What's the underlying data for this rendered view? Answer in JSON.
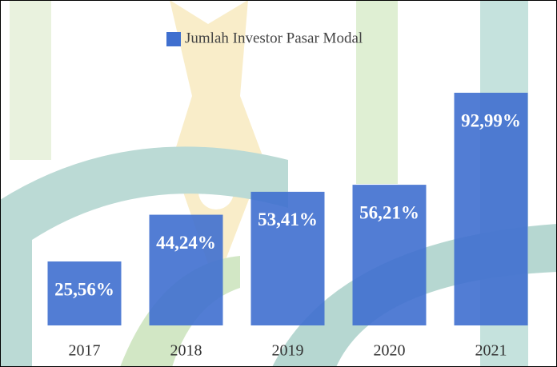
{
  "chart_data": {
    "type": "bar",
    "legend_label": "Jumlah Investor Pasar Modal",
    "categories": [
      "2017",
      "2018",
      "2019",
      "2020",
      "2021"
    ],
    "values": [
      25.56,
      44.24,
      53.41,
      56.21,
      92.99
    ],
    "value_labels": [
      "25,56%",
      "44,24%",
      "53,41%",
      "56,21%",
      "92,99%"
    ],
    "color": "#3f6fcf",
    "legend": "top"
  }
}
